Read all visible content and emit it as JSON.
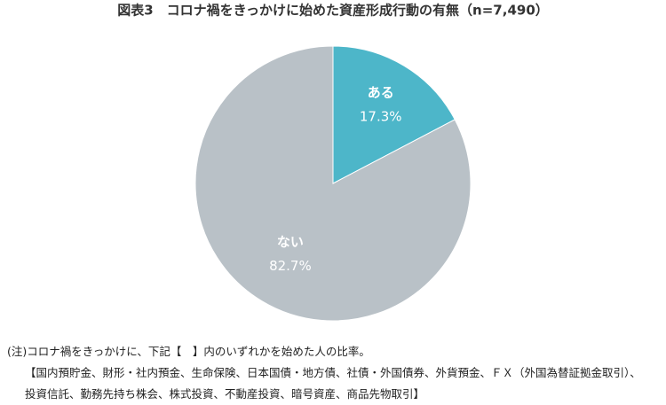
{
  "chart_data": {
    "type": "pie",
    "title": "図表3　コロナ禍をきっかけに始めた資産形成行動の有無（n=7,490）",
    "categories": [
      "ある",
      "ない"
    ],
    "values": [
      17.3,
      82.7
    ],
    "value_labels": [
      "17.3%",
      "82.7%"
    ],
    "colors": [
      "#4db6c9",
      "#b9c1c7"
    ],
    "notes": [
      "(注)コロナ禍をきっかけに、下記【　】内のいずれかを始めた人の比率。",
      "【国内預貯金、財形・社内預金、生命保険、日本国債・地方債、社債・外国債券、外貨預金、ＦＸ（外国為替証拠金取引）、",
      "投資信託、勤務先持ち株会、株式投資、不動産投資、暗号資産、商品先物取引】"
    ]
  }
}
